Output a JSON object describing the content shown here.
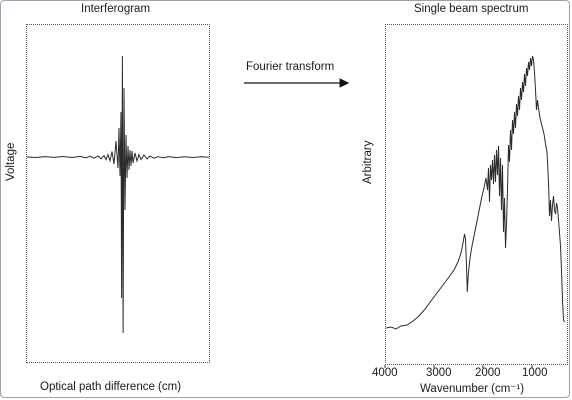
{
  "left_panel": {
    "title": "Interferogram",
    "ylabel": "Voltage",
    "xlabel": "Optical path difference (cm)"
  },
  "transform": {
    "label": "Fourier transform"
  },
  "right_panel": {
    "title": "Single beam spectrum",
    "ylabel": "Arbitrary",
    "xlabel": "Wavenumber (cm⁻¹)",
    "xticks": [
      "4000",
      "3000",
      "2000",
      "1000"
    ]
  },
  "colors": {
    "trace": "#2b2b2b",
    "frame": "#9aa3ad"
  }
}
